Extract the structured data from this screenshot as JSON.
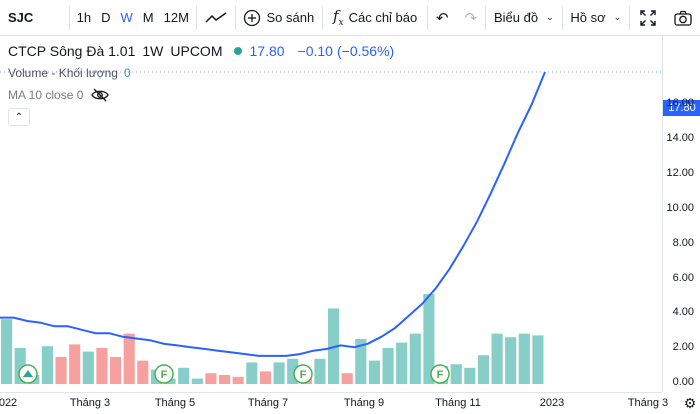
{
  "toolbar": {
    "symbol": "SJC",
    "intervals": [
      "1h",
      "D",
      "W",
      "M",
      "12M"
    ],
    "active_interval": "W",
    "compare_label": "So sánh",
    "indicators_label": "Các chỉ báo",
    "chart_type_label": "Biểu đồ",
    "profile_label": "Hồ sơ"
  },
  "legend": {
    "name": "CTCP Sông Đà 1.01",
    "interval": "1W",
    "exchange": "UPCOM",
    "last_price": "17.80",
    "change": "−0.10",
    "change_pct": "(−0.56%)",
    "volume_label": "Volume - Khối lượng",
    "volume_value": "0",
    "ma_label": "MA 10 close 0"
  },
  "price_scale": {
    "ticks": [
      "16.00",
      "14.00",
      "12.00",
      "10.00",
      "8.00",
      "6.00",
      "4.00",
      "2.00",
      "0.00"
    ],
    "last_badge": "17.80"
  },
  "time_axis": {
    "labels": [
      "022",
      "Tháng 3",
      "Tháng 5",
      "Tháng 7",
      "Tháng 9",
      "Tháng 11",
      "2023",
      "Tháng 3"
    ]
  },
  "colors": {
    "line": "#2962ff",
    "volume_up": "#26a69a",
    "volume_down": "#ef5350",
    "dividend": "#4caf50"
  },
  "icons": {
    "indicators": "fx-icon",
    "chart_type": "line-chart-icon",
    "compare": "plus-circle-icon",
    "fullscreen": "fullscreen-icon",
    "screenshot": "camera-icon",
    "settings": "gear-icon",
    "visibility": "eye-off-icon"
  },
  "chart_data": {
    "type": "line",
    "title": "",
    "xlabel": "",
    "ylabel": "",
    "ylim": [
      0,
      17.8
    ],
    "series": [
      {
        "values": [
          3.7,
          3.7,
          3.5,
          3.4,
          3.2,
          3.2,
          3.0,
          2.8,
          2.8,
          2.6,
          2.5,
          2.4,
          2.2,
          2.1,
          2.0,
          1.9,
          1.8,
          1.7,
          1.6,
          1.5,
          1.5,
          1.5,
          1.6,
          1.8,
          1.9,
          2.1,
          2.0,
          2.2,
          2.6,
          3.1,
          3.8,
          4.5,
          5.4,
          6.5,
          7.8,
          9.2,
          10.8,
          12.5,
          14.3,
          15.9,
          17.8
        ]
      }
    ],
    "volume_bars": [
      {
        "v": 0.36,
        "d": "up"
      },
      {
        "v": 0.2,
        "d": "up"
      },
      {
        "v": 0.05,
        "d": "up"
      },
      {
        "v": 0.21,
        "d": "up"
      },
      {
        "v": 0.15,
        "d": "down"
      },
      {
        "v": 0.22,
        "d": "down"
      },
      {
        "v": 0.18,
        "d": "up"
      },
      {
        "v": 0.2,
        "d": "down"
      },
      {
        "v": 0.15,
        "d": "down"
      },
      {
        "v": 0.28,
        "d": "down"
      },
      {
        "v": 0.13,
        "d": "down"
      },
      {
        "v": 0.08,
        "d": "up"
      },
      {
        "v": 0.03,
        "d": "up"
      },
      {
        "v": 0.09,
        "d": "up"
      },
      {
        "v": 0.03,
        "d": "up"
      },
      {
        "v": 0.06,
        "d": "down"
      },
      {
        "v": 0.05,
        "d": "down"
      },
      {
        "v": 0.04,
        "d": "down"
      },
      {
        "v": 0.12,
        "d": "up"
      },
      {
        "v": 0.07,
        "d": "down"
      },
      {
        "v": 0.12,
        "d": "up"
      },
      {
        "v": 0.14,
        "d": "up"
      },
      {
        "v": 0.06,
        "d": "down"
      },
      {
        "v": 0.14,
        "d": "up"
      },
      {
        "v": 0.42,
        "d": "up"
      },
      {
        "v": 0.06,
        "d": "down"
      },
      {
        "v": 0.25,
        "d": "up"
      },
      {
        "v": 0.13,
        "d": "up"
      },
      {
        "v": 0.2,
        "d": "up"
      },
      {
        "v": 0.23,
        "d": "up"
      },
      {
        "v": 0.28,
        "d": "up"
      },
      {
        "v": 0.5,
        "d": "up"
      },
      {
        "v": 0.1,
        "d": "up"
      },
      {
        "v": 0.11,
        "d": "up"
      },
      {
        "v": 0.09,
        "d": "up"
      },
      {
        "v": 0.16,
        "d": "up"
      },
      {
        "v": 0.28,
        "d": "up"
      },
      {
        "v": 0.26,
        "d": "up"
      },
      {
        "v": 0.28,
        "d": "up"
      },
      {
        "v": 0.27,
        "d": "up"
      }
    ],
    "dividend_markers": [
      "F",
      "F",
      "F"
    ]
  }
}
